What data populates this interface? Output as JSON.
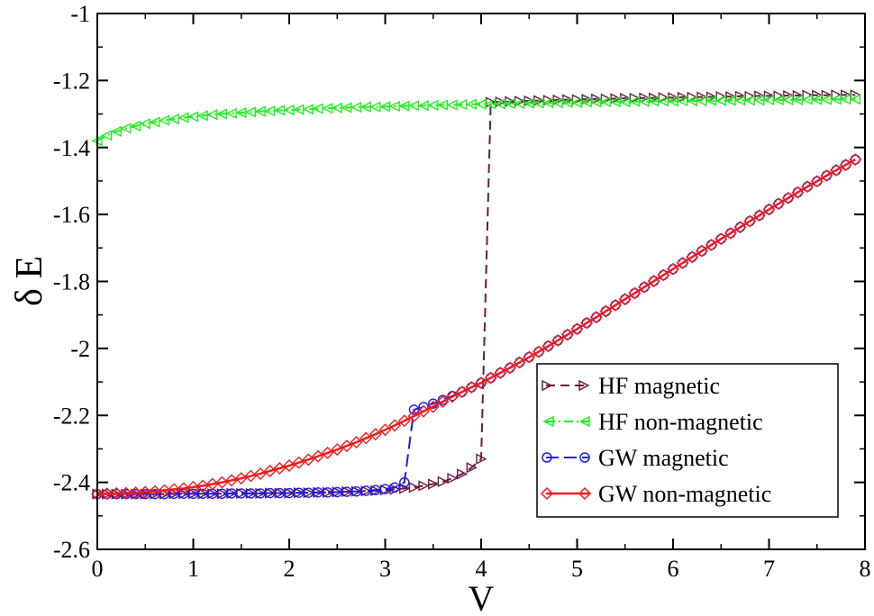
{
  "chart_data": {
    "type": "line",
    "title": "",
    "xlabel": "V",
    "ylabel": "δ E",
    "xlim": [
      0,
      8
    ],
    "ylim": [
      -2.6,
      -1.0
    ],
    "xticks": [
      "0",
      "1",
      "2",
      "3",
      "4",
      "5",
      "6",
      "7",
      "8"
    ],
    "yticks": [
      "-2.6",
      "-2.4",
      "-2.2",
      "-2",
      "-1.8",
      "-1.6",
      "-1.4",
      "-1.2",
      "-1"
    ],
    "legend_position": "bottom-right",
    "series": [
      {
        "name": "HF magnetic",
        "color": "#6b1b45",
        "dash": "dashed",
        "marker": "triangle-right",
        "x": [
          0,
          0.1,
          0.2,
          0.3,
          0.4,
          0.5,
          0.6,
          0.7,
          0.8,
          0.9,
          1.0,
          1.1,
          1.2,
          1.3,
          1.4,
          1.5,
          1.6,
          1.7,
          1.8,
          1.9,
          2.0,
          2.1,
          2.2,
          2.3,
          2.4,
          2.5,
          2.6,
          2.7,
          2.8,
          2.9,
          3.0,
          3.1,
          3.2,
          3.3,
          3.4,
          3.5,
          3.6,
          3.7,
          3.8,
          3.9,
          4.0,
          4.1,
          4.2,
          4.3,
          4.4,
          4.5,
          4.6,
          4.7,
          4.8,
          4.9,
          5.0,
          5.1,
          5.2,
          5.3,
          5.4,
          5.5,
          5.6,
          5.7,
          5.8,
          5.9,
          6.0,
          6.1,
          6.2,
          6.3,
          6.4,
          6.5,
          6.6,
          6.7,
          6.8,
          6.9,
          7.0,
          7.1,
          7.2,
          7.3,
          7.4,
          7.5,
          7.6,
          7.7,
          7.8,
          7.9
        ],
        "y": [
          -2.435,
          -2.435,
          -2.435,
          -2.435,
          -2.435,
          -2.435,
          -2.435,
          -2.435,
          -2.434,
          -2.434,
          -2.434,
          -2.434,
          -2.434,
          -2.434,
          -2.433,
          -2.433,
          -2.433,
          -2.433,
          -2.432,
          -2.432,
          -2.432,
          -2.431,
          -2.431,
          -2.43,
          -2.43,
          -2.429,
          -2.428,
          -2.427,
          -2.426,
          -2.425,
          -2.423,
          -2.421,
          -2.418,
          -2.415,
          -2.41,
          -2.405,
          -2.398,
          -2.388,
          -2.375,
          -2.356,
          -2.33,
          -1.265,
          -1.264,
          -1.263,
          -1.262,
          -1.261,
          -1.26,
          -1.259,
          -1.258,
          -1.257,
          -1.257,
          -1.256,
          -1.255,
          -1.255,
          -1.254,
          -1.253,
          -1.253,
          -1.252,
          -1.252,
          -1.251,
          -1.251,
          -1.25,
          -1.25,
          -1.249,
          -1.249,
          -1.248,
          -1.248,
          -1.247,
          -1.247,
          -1.246,
          -1.246,
          -1.246,
          -1.245,
          -1.245,
          -1.244,
          -1.244,
          -1.244,
          -1.243,
          -1.243,
          -1.243
        ]
      },
      {
        "name": "HF non-magnetic",
        "color": "#22ee22",
        "dash": "dash-dot",
        "marker": "triangle-left",
        "x": [
          0,
          0.1,
          0.2,
          0.3,
          0.4,
          0.5,
          0.6,
          0.7,
          0.8,
          0.9,
          1.0,
          1.1,
          1.2,
          1.3,
          1.4,
          1.5,
          1.6,
          1.7,
          1.8,
          1.9,
          2.0,
          2.1,
          2.2,
          2.3,
          2.4,
          2.5,
          2.6,
          2.7,
          2.8,
          2.9,
          3.0,
          3.1,
          3.2,
          3.3,
          3.4,
          3.5,
          3.6,
          3.7,
          3.8,
          3.9,
          4.0,
          4.1,
          4.2,
          4.3,
          4.4,
          4.5,
          4.6,
          4.7,
          4.8,
          4.9,
          5.0,
          5.1,
          5.2,
          5.3,
          5.4,
          5.5,
          5.6,
          5.7,
          5.8,
          5.9,
          6.0,
          6.1,
          6.2,
          6.3,
          6.4,
          6.5,
          6.6,
          6.7,
          6.8,
          6.9,
          7.0,
          7.1,
          7.2,
          7.3,
          7.4,
          7.5,
          7.6,
          7.7,
          7.8,
          7.9
        ],
        "y": [
          -1.38,
          -1.364,
          -1.352,
          -1.343,
          -1.336,
          -1.329,
          -1.324,
          -1.319,
          -1.315,
          -1.311,
          -1.308,
          -1.305,
          -1.302,
          -1.3,
          -1.298,
          -1.296,
          -1.294,
          -1.292,
          -1.291,
          -1.289,
          -1.288,
          -1.287,
          -1.286,
          -1.284,
          -1.283,
          -1.282,
          -1.281,
          -1.28,
          -1.279,
          -1.279,
          -1.278,
          -1.277,
          -1.276,
          -1.275,
          -1.275,
          -1.274,
          -1.273,
          -1.273,
          -1.272,
          -1.271,
          -1.271,
          -1.27,
          -1.27,
          -1.269,
          -1.269,
          -1.268,
          -1.268,
          -1.267,
          -1.267,
          -1.266,
          -1.266,
          -1.265,
          -1.265,
          -1.264,
          -1.264,
          -1.264,
          -1.263,
          -1.263,
          -1.262,
          -1.262,
          -1.262,
          -1.261,
          -1.261,
          -1.261,
          -1.26,
          -1.26,
          -1.26,
          -1.259,
          -1.259,
          -1.259,
          -1.258,
          -1.258,
          -1.258,
          -1.258,
          -1.257,
          -1.257,
          -1.257,
          -1.256,
          -1.256,
          -1.256
        ]
      },
      {
        "name": "GW magnetic",
        "color": "#1a1aee",
        "dash": "long-dash",
        "marker": "circle",
        "x": [
          0,
          0.1,
          0.2,
          0.3,
          0.4,
          0.5,
          0.6,
          0.7,
          0.8,
          0.9,
          1.0,
          1.1,
          1.2,
          1.3,
          1.4,
          1.5,
          1.6,
          1.7,
          1.8,
          1.9,
          2.0,
          2.1,
          2.2,
          2.3,
          2.4,
          2.5,
          2.6,
          2.7,
          2.8,
          2.9,
          3.0,
          3.1,
          3.2,
          3.3,
          3.4,
          3.5,
          3.6,
          3.7,
          3.8,
          3.9,
          4.0,
          4.1,
          4.2,
          4.3,
          4.4,
          4.5,
          4.6,
          4.7,
          4.8,
          4.9,
          5.0,
          5.1,
          5.2,
          5.3,
          5.4,
          5.5,
          5.6,
          5.7,
          5.8,
          5.9,
          6.0,
          6.1,
          6.2,
          6.3,
          6.4,
          6.5,
          6.6,
          6.7,
          6.8,
          6.9,
          7.0,
          7.1,
          7.2,
          7.3,
          7.4,
          7.5,
          7.6,
          7.7,
          7.8,
          7.9
        ],
        "y": [
          -2.435,
          -2.435,
          -2.435,
          -2.435,
          -2.435,
          -2.435,
          -2.435,
          -2.435,
          -2.434,
          -2.434,
          -2.434,
          -2.434,
          -2.434,
          -2.434,
          -2.433,
          -2.433,
          -2.433,
          -2.433,
          -2.432,
          -2.432,
          -2.432,
          -2.431,
          -2.431,
          -2.43,
          -2.43,
          -2.429,
          -2.428,
          -2.427,
          -2.425,
          -2.423,
          -2.42,
          -2.415,
          -2.4,
          -2.183,
          -2.175,
          -2.165,
          -2.154,
          -2.142,
          -2.13,
          -2.116,
          -2.103,
          -2.088,
          -2.073,
          -2.058,
          -2.042,
          -2.026,
          -2.01,
          -1.993,
          -1.976,
          -1.959,
          -1.942,
          -1.924,
          -1.907,
          -1.889,
          -1.871,
          -1.853,
          -1.835,
          -1.817,
          -1.799,
          -1.781,
          -1.763,
          -1.745,
          -1.727,
          -1.709,
          -1.691,
          -1.673,
          -1.656,
          -1.638,
          -1.62,
          -1.603,
          -1.585,
          -1.568,
          -1.551,
          -1.534,
          -1.517,
          -1.501,
          -1.484,
          -1.468,
          -1.452,
          -1.436
        ]
      },
      {
        "name": "GW non-magnetic",
        "color": "#ee1c1c",
        "dash": "solid",
        "marker": "diamond",
        "x": [
          0,
          0.1,
          0.2,
          0.3,
          0.4,
          0.5,
          0.6,
          0.7,
          0.8,
          0.9,
          1.0,
          1.1,
          1.2,
          1.3,
          1.4,
          1.5,
          1.6,
          1.7,
          1.8,
          1.9,
          2.0,
          2.1,
          2.2,
          2.3,
          2.4,
          2.5,
          2.6,
          2.7,
          2.8,
          2.9,
          3.0,
          3.1,
          3.2,
          3.3,
          3.4,
          3.5,
          3.6,
          3.7,
          3.8,
          3.9,
          4.0,
          4.1,
          4.2,
          4.3,
          4.4,
          4.5,
          4.6,
          4.7,
          4.8,
          4.9,
          5.0,
          5.1,
          5.2,
          5.3,
          5.4,
          5.5,
          5.6,
          5.7,
          5.8,
          5.9,
          6.0,
          6.1,
          6.2,
          6.3,
          6.4,
          6.5,
          6.6,
          6.7,
          6.8,
          6.9,
          7.0,
          7.1,
          7.2,
          7.3,
          7.4,
          7.5,
          7.6,
          7.7,
          7.8,
          7.9
        ],
        "y": [
          -2.435,
          -2.434,
          -2.433,
          -2.432,
          -2.431,
          -2.429,
          -2.427,
          -2.424,
          -2.421,
          -2.418,
          -2.414,
          -2.41,
          -2.405,
          -2.4,
          -2.394,
          -2.388,
          -2.381,
          -2.374,
          -2.366,
          -2.358,
          -2.35,
          -2.341,
          -2.332,
          -2.322,
          -2.312,
          -2.302,
          -2.291,
          -2.28,
          -2.268,
          -2.256,
          -2.243,
          -2.23,
          -2.216,
          -2.202,
          -2.188,
          -2.174,
          -2.159,
          -2.144,
          -2.13,
          -2.116,
          -2.103,
          -2.088,
          -2.073,
          -2.058,
          -2.042,
          -2.026,
          -2.01,
          -1.993,
          -1.976,
          -1.959,
          -1.942,
          -1.924,
          -1.907,
          -1.889,
          -1.871,
          -1.853,
          -1.835,
          -1.817,
          -1.799,
          -1.781,
          -1.763,
          -1.745,
          -1.727,
          -1.709,
          -1.691,
          -1.673,
          -1.656,
          -1.638,
          -1.62,
          -1.603,
          -1.585,
          -1.568,
          -1.551,
          -1.534,
          -1.517,
          -1.501,
          -1.484,
          -1.468,
          -1.452,
          -1.436
        ]
      }
    ]
  }
}
